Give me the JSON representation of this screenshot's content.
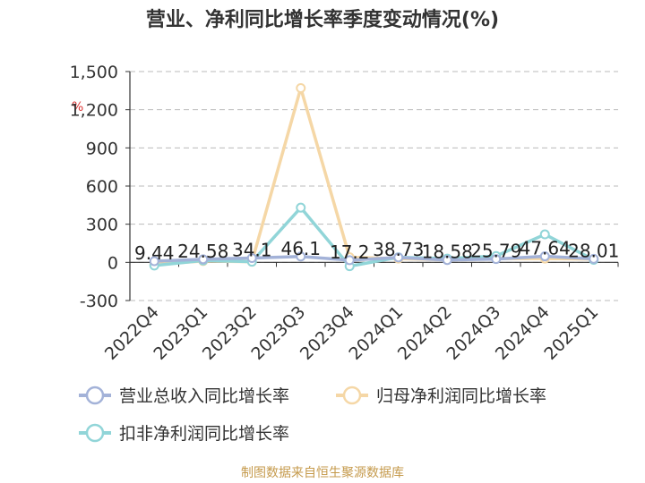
{
  "title": "营业、净利同比增长率季度变动情况(%)",
  "source_text": "制图数据来自恒生聚源数据库",
  "unit_label": "%",
  "chart_data": {
    "type": "line",
    "title": "营业、净利同比增长率季度变动情况(%)",
    "ylabel": "%",
    "xlabel": "",
    "categories": [
      "2022Q4",
      "2023Q1",
      "2023Q2",
      "2023Q3",
      "2023Q4",
      "2024Q1",
      "2024Q2",
      "2024Q3",
      "2024Q4",
      "2025Q1"
    ],
    "ylim": [
      -300,
      1500
    ],
    "yticks": [
      -300,
      0,
      300,
      600,
      900,
      1200,
      1500
    ],
    "ytick_labels": [
      "-300",
      "0",
      "300",
      "600",
      "900",
      "1,200",
      "1,500"
    ],
    "grid": "horizontal dashed",
    "legend_position": "bottom",
    "series": [
      {
        "name": "营业总收入同比增长率",
        "color": "#a3b2d8",
        "values": [
          9.44,
          24.58,
          34.1,
          46.1,
          17.2,
          38.73,
          18.58,
          25.79,
          47.64,
          28.01
        ],
        "labels": [
          "9.44",
          "24.58",
          "34.1",
          "46.1",
          "17.2",
          "38.73",
          "18.58",
          "25.79",
          "47.64",
          "28.01"
        ]
      },
      {
        "name": "归母净利润同比增长率",
        "color": "#f5d7a6",
        "values": [
          -15,
          10,
          5,
          1370,
          40,
          30,
          20,
          30,
          30,
          25
        ]
      },
      {
        "name": "扣非净利润同比增长率",
        "color": "#91d5d8",
        "values": [
          -25,
          15,
          5,
          430,
          -30,
          40,
          30,
          50,
          220,
          20
        ]
      }
    ]
  }
}
